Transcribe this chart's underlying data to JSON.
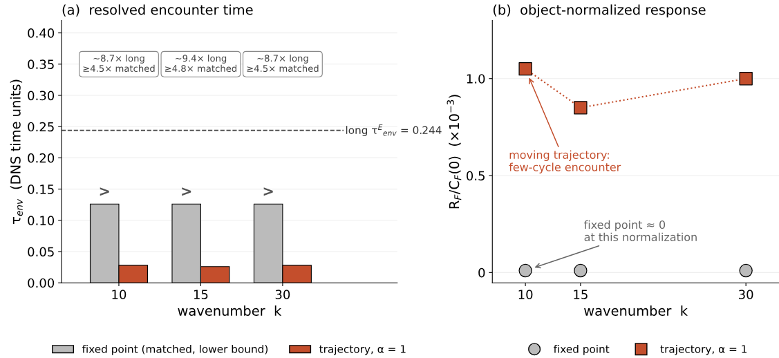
{
  "chart_data": [
    {
      "type": "bar",
      "title": "(a)  resolved encounter time",
      "xlabel": "wavenumber  k",
      "ylabel": "τ$_{env}$  (DNS time units)",
      "categories": [
        "10",
        "15",
        "30"
      ],
      "series": [
        {
          "name": "fixed point (matched, lower bound)",
          "color": "#bbbbbb",
          "values": [
            0.126,
            0.126,
            0.126
          ]
        },
        {
          "name": "trajectory, α = 1",
          "color": "#c44e2c",
          "values": [
            0.028,
            0.026,
            0.028
          ]
        }
      ],
      "ylim": [
        0,
        0.42
      ],
      "yticks": [
        {
          "value": 0,
          "label": "0.00"
        },
        {
          "value": 0.05,
          "label": "0.05"
        },
        {
          "value": 0.1,
          "label": "0.10"
        },
        {
          "value": 0.15,
          "label": "0.15"
        },
        {
          "value": 0.2,
          "label": "0.20"
        },
        {
          "value": 0.25,
          "label": "0.25"
        },
        {
          "value": 0.3,
          "label": "0.30"
        },
        {
          "value": 0.35,
          "label": "0.35"
        },
        {
          "value": 0.4,
          "label": "0.40"
        }
      ],
      "ref_lines": [
        {
          "axis": "y",
          "value": 0.244,
          "label": "long τ$^{E}$$_{env}$ = 0.244",
          "color": "#444444",
          "line_style": "dashed"
        }
      ],
      "annotations": [
        {
          "text": ">",
          "x": "10",
          "y": 0.126
        },
        {
          "text": ">",
          "x": "15",
          "y": 0.126
        },
        {
          "text": ">",
          "x": "30",
          "y": 0.126
        },
        "~8.7× long\n≥4.5× matched",
        "~9.4× long\n≥4.8× matched",
        "~8.7× long\n≥4.5× matched"
      ],
      "grid": "y",
      "legend": "bottom"
    },
    {
      "type": "scatter",
      "title": "(b)  object-normalized response",
      "xlabel": "wavenumber  k",
      "ylabel": "R$_{F}$/C$_{F}$(0)  (×10$^{−3}$)",
      "x": [
        10,
        15,
        30
      ],
      "series": [
        {
          "name": "fixed point",
          "color": "#bbbbbb",
          "values": [
            0.01,
            0.01,
            0.01
          ],
          "marker": "circle"
        },
        {
          "name": "trajectory, α = 1",
          "type": "line",
          "color": "#c44e2c",
          "values": [
            1.05,
            0.85,
            1.0
          ],
          "marker": "square",
          "line_style": "dotted"
        }
      ],
      "xlim": [
        7,
        33
      ],
      "xticks": [
        10,
        15,
        30
      ],
      "ylim": [
        -0.053,
        1.3
      ],
      "yticks": [
        0,
        0.5,
        {
          "value": 1.0,
          "label": "1.0"
        }
      ],
      "annotations": [
        "moving trajectory:\nfew-cycle encounter",
        "fixed point ≈ 0\nat this normalization"
      ],
      "grid": "y",
      "legend": "bottom"
    }
  ]
}
